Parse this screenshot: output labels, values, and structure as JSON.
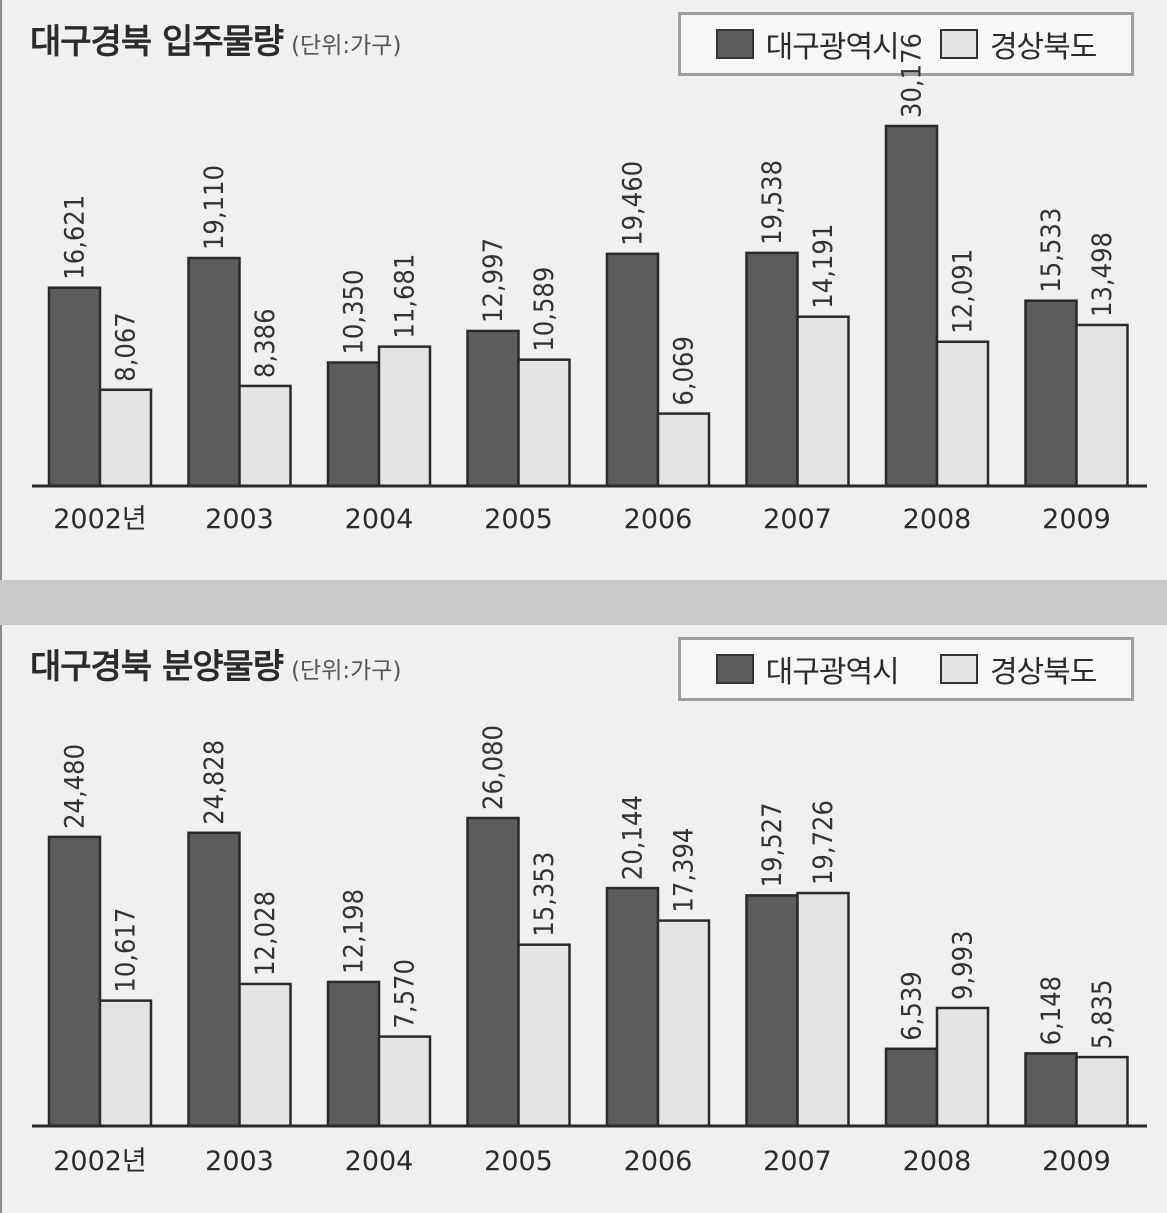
{
  "colors": {
    "daegu": "#5c5c5c",
    "gyeongbuk": "#e4e4e4",
    "bar_stroke": "#2a2a2a",
    "axis": "#2a2a2a"
  },
  "legend": {
    "series_1": "대구광역시",
    "series_2": "경상북도"
  },
  "chart_data": [
    {
      "type": "bar",
      "title": "대구경북 입주물량",
      "unit": "(단위:가구)",
      "categories": [
        "2002년",
        "2003",
        "2004",
        "2005",
        "2006",
        "2007",
        "2008",
        "2009"
      ],
      "series": [
        {
          "name": "대구광역시",
          "values": [
            16621,
            19110,
            10350,
            12997,
            19460,
            19538,
            30176,
            15533
          ],
          "labels": [
            "16,621",
            "19,110",
            "10,350",
            "12,997",
            "19,460",
            "19,538",
            "30,176",
            "15,533"
          ]
        },
        {
          "name": "경상북도",
          "values": [
            8067,
            8386,
            11681,
            10589,
            6069,
            14191,
            12091,
            13498
          ],
          "labels": [
            "8,067",
            "8,386",
            "11,681",
            "10,589",
            "6,069",
            "14,191",
            "12,091",
            "13,498"
          ]
        }
      ],
      "ylim": [
        0,
        30176
      ],
      "legend_position": "top-right",
      "grid": false
    },
    {
      "type": "bar",
      "title": "대구경북 분양물량",
      "unit": "(단위:가구)",
      "categories": [
        "2002년",
        "2003",
        "2004",
        "2005",
        "2006",
        "2007",
        "2008",
        "2009"
      ],
      "series": [
        {
          "name": "대구광역시",
          "values": [
            24480,
            24828,
            12198,
            26080,
            20144,
            19527,
            6539,
            6148
          ],
          "labels": [
            "24,480",
            "24,828",
            "12,198",
            "26,080",
            "20,144",
            "19,527",
            "6,539",
            "6,148"
          ]
        },
        {
          "name": "경상북도",
          "values": [
            10617,
            12028,
            7570,
            15353,
            17394,
            19726,
            9993,
            5835
          ],
          "labels": [
            "10,617",
            "12,028",
            "7,570",
            "15,353",
            "17,394",
            "19,726",
            "9,993",
            "5,835"
          ]
        }
      ],
      "ylim": [
        0,
        26080
      ],
      "legend_position": "top-right",
      "grid": false
    }
  ]
}
